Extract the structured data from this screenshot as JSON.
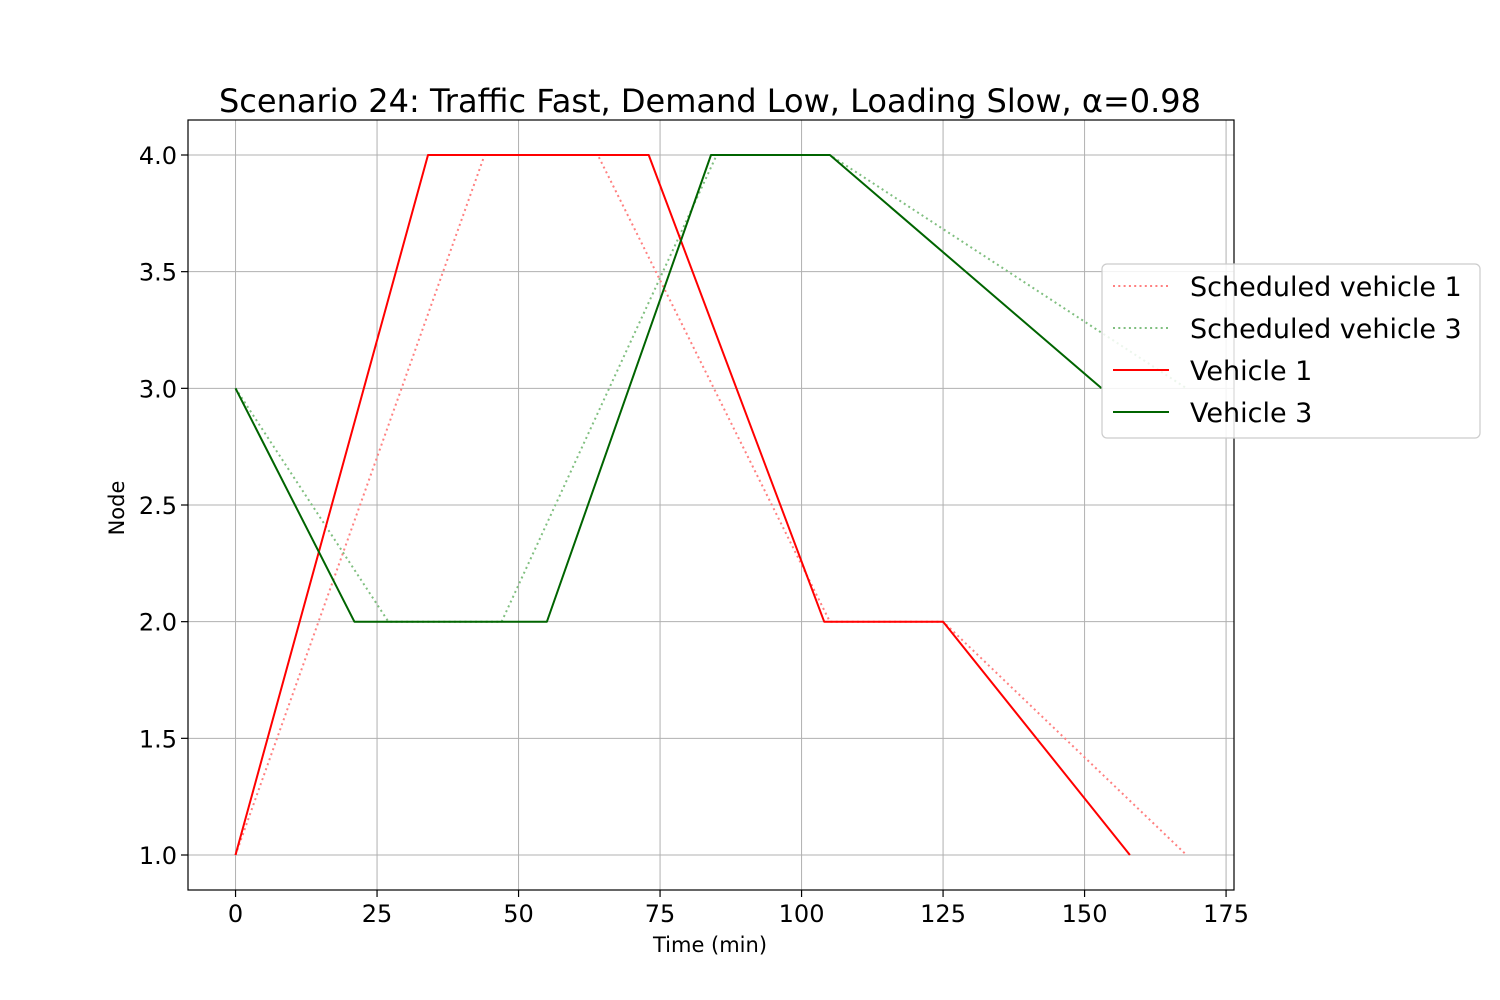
{
  "chart_data": {
    "type": "line",
    "title": "Scenario 24: Traffic Fast, Demand Low, Loading Slow, α=0.98",
    "xlabel": "Time (min)",
    "ylabel": "Node",
    "xlim": [
      -8.4,
      176.4
    ],
    "ylim": [
      0.85,
      4.15
    ],
    "xticks": [
      0,
      25,
      50,
      75,
      100,
      125,
      150,
      175
    ],
    "yticks": [
      1.0,
      1.5,
      2.0,
      2.5,
      3.0,
      3.5,
      4.0
    ],
    "xtick_labels": [
      "0",
      "25",
      "50",
      "75",
      "100",
      "125",
      "150",
      "175"
    ],
    "ytick_labels": [
      "1.0",
      "1.5",
      "2.0",
      "2.5",
      "3.0",
      "3.5",
      "4.0"
    ],
    "grid": true,
    "legend_position": "right, outside plot area",
    "series": [
      {
        "name": "Scheduled vehicle 1",
        "style": "dotted",
        "color": "#ff8080",
        "x": [
          0,
          44,
          64,
          105,
          125,
          168
        ],
        "y": [
          1,
          4,
          4,
          2,
          2,
          1
        ]
      },
      {
        "name": "Scheduled vehicle 3",
        "style": "dotted",
        "color": "#80bf80",
        "x": [
          0,
          27,
          47,
          85,
          105,
          168
        ],
        "y": [
          3,
          2,
          2,
          4,
          4,
          3
        ]
      },
      {
        "name": "Vehicle 1",
        "style": "solid",
        "color": "#ff0000",
        "x": [
          0,
          34,
          73,
          104,
          125,
          158
        ],
        "y": [
          1,
          4,
          4,
          2,
          2,
          1
        ]
      },
      {
        "name": "Vehicle 3",
        "style": "solid",
        "color": "#006400",
        "x": [
          0,
          21,
          55,
          84,
          105,
          153
        ],
        "y": [
          3,
          2,
          2,
          4,
          4,
          3
        ]
      }
    ]
  }
}
